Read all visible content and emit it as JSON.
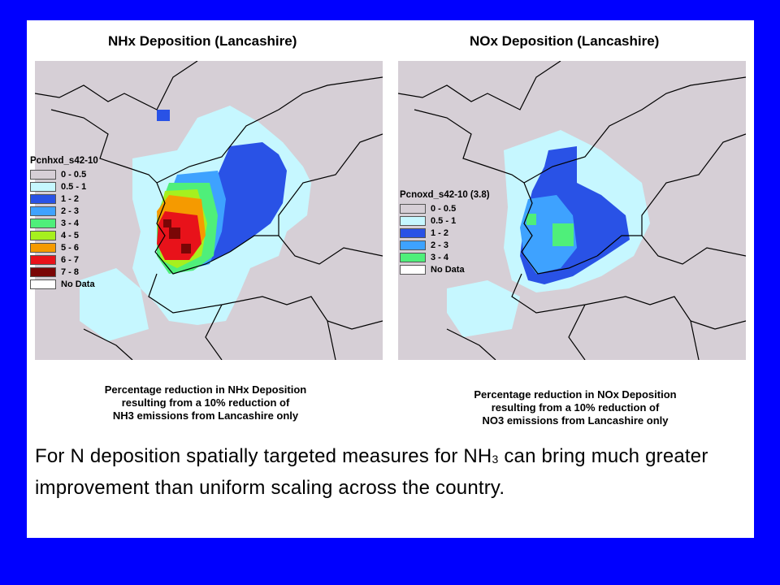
{
  "maps": [
    {
      "title": "NHx Deposition (Lancashire)",
      "legend_title": "Pcnhxd_s42-10",
      "legend": [
        {
          "label": "0 - 0.5",
          "color": "#d6cfd6"
        },
        {
          "label": "0.5 - 1",
          "color": "#c6f7ff"
        },
        {
          "label": "1 - 2",
          "color": "#2952e6"
        },
        {
          "label": "2 - 3",
          "color": "#3ea2ff"
        },
        {
          "label": "3 - 4",
          "color": "#4fef7a"
        },
        {
          "label": "4 - 5",
          "color": "#a6f01e"
        },
        {
          "label": "5 - 6",
          "color": "#f59a00"
        },
        {
          "label": "6 - 7",
          "color": "#e8121a"
        },
        {
          "label": "7 - 8",
          "color": "#7a0606"
        },
        {
          "label": "No Data",
          "color": "#ffffff"
        }
      ],
      "caption_lines": [
        "Percentage reduction in NHx Deposition",
        "resulting from a 10% reduction of",
        "NH3 emissions from Lancashire only"
      ]
    },
    {
      "title": "NOx Deposition (Lancashire)",
      "legend_title": "Pcnoxd_s42-10 (3.8)",
      "legend": [
        {
          "label": "0 - 0.5",
          "color": "#d6cfd6"
        },
        {
          "label": "0.5 - 1",
          "color": "#c6f7ff"
        },
        {
          "label": "1 - 2",
          "color": "#2952e6"
        },
        {
          "label": "2 - 3",
          "color": "#3ea2ff"
        },
        {
          "label": "3 - 4",
          "color": "#4fef7a"
        },
        {
          "label": "No Data",
          "color": "#ffffff"
        }
      ],
      "caption_lines": [
        "Percentage reduction in NOx Deposition",
        "resulting from a 10% reduction of",
        "NO3 emissions from Lancashire only"
      ]
    }
  ],
  "bottom_text": {
    "part1": "For N deposition spatially targeted measures  for NH",
    "subscript": "3",
    "part2": " can bring much greater improvement than uniform scaling across the country."
  },
  "colors": {
    "slide_border": "#0000ff",
    "land_background": "#d6cfd6",
    "boundary_lines": "#000000"
  }
}
